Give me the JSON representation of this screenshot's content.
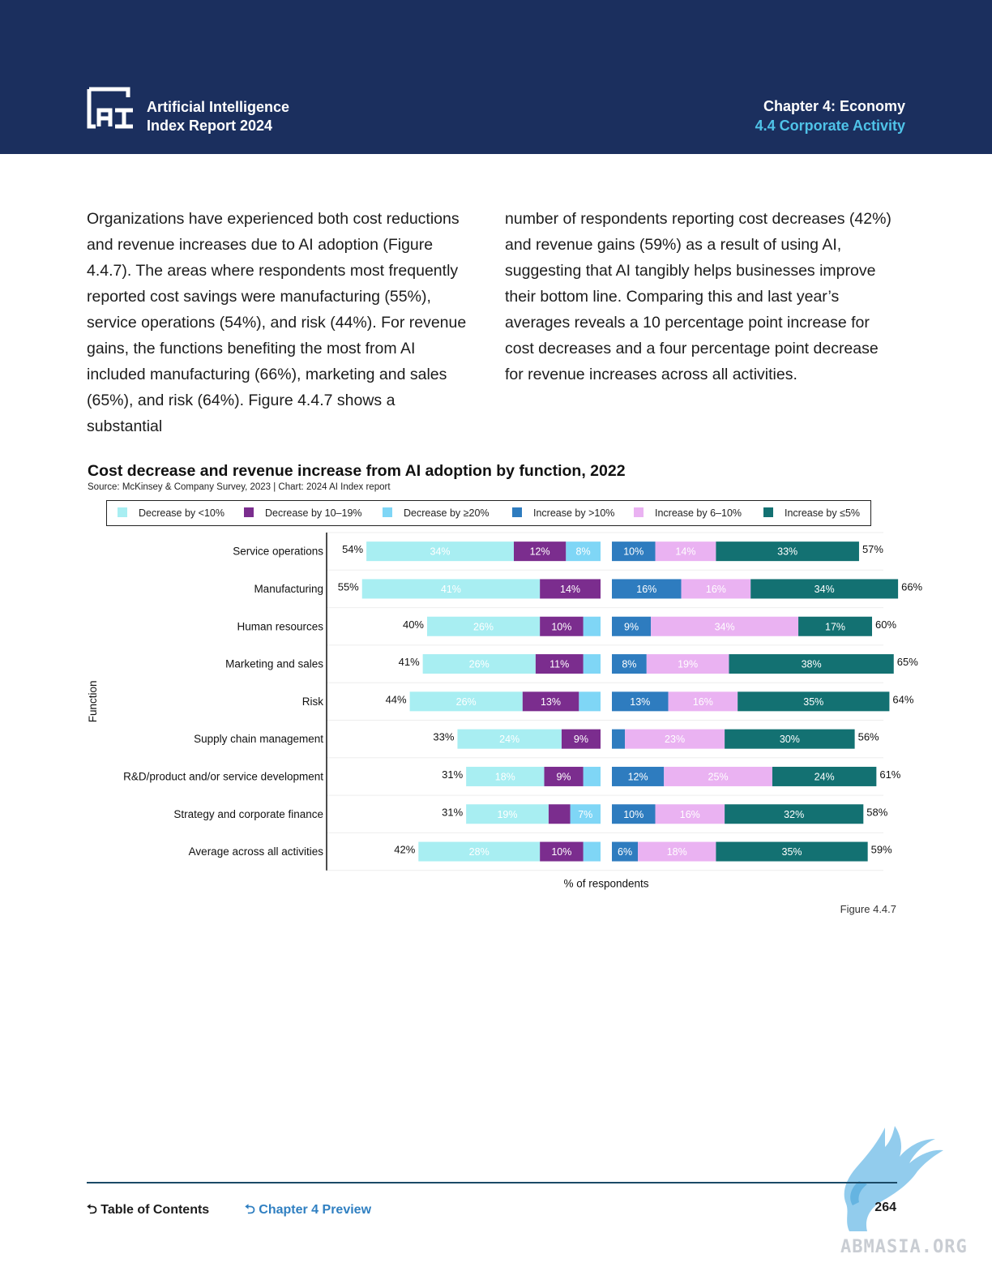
{
  "header": {
    "report_title_line1": "Artificial Intelligence",
    "report_title_line2": "Index Report 2024",
    "chapter": "Chapter 4: Economy",
    "section": "4.4 Corporate Activity"
  },
  "body": {
    "col1": "Organizations have experienced both cost reductions and revenue increases due to AI adoption (Figure 4.4.7). The areas where respondents most frequently reported cost savings were manufacturing (55%), service operations (54%), and risk (44%). For revenue gains, the functions benefiting the most from AI included manufacturing (66%), marketing and sales (65%), and risk (64%). Figure 4.4.7 shows a substantial",
    "col2": "number of respondents reporting cost decreases (42%) and revenue gains (59%) as a result of using AI, suggesting that AI tangibly helps businesses improve their bottom line. Comparing this and last year’s averages reveals a 10 percentage point increase for cost decreases and a four percentage point decrease for revenue increases across all activities."
  },
  "chart": {
    "title": "Cost decrease and revenue increase from AI adoption by function, 2022",
    "source": "Source: McKinsey & Company Survey, 2023 | Chart: 2024 AI Index report",
    "figure_label": "Figure 4.4.7"
  },
  "chart_data": {
    "type": "bar",
    "orientation": "horizontal-diverging",
    "title": "Cost decrease and revenue increase from AI adoption by function, 2022",
    "xlabel": "% of respondents",
    "ylabel": "Function",
    "categories": [
      "Service operations",
      "Manufacturing",
      "Human resources",
      "Marketing and sales",
      "Risk",
      "Supply chain management",
      "R&D/product and/or service development",
      "Strategy and corporate finance",
      "Average across all activities"
    ],
    "cost_series": [
      {
        "name": "Decrease by <10%",
        "color": "#a8eef2",
        "values": [
          34,
          41,
          26,
          26,
          26,
          24,
          18,
          19,
          28
        ],
        "labels": [
          "34%",
          "41%",
          "26%",
          "26%",
          "26%",
          "24%",
          "18%",
          "19%",
          "28%"
        ]
      },
      {
        "name": "Decrease by 10–19%",
        "color": "#7b2d8e",
        "values": [
          12,
          14,
          10,
          11,
          13,
          9,
          9,
          5,
          10
        ],
        "labels": [
          "12%",
          "14%",
          "10%",
          "11%",
          "13%",
          "9%",
          "9%",
          "",
          "10%"
        ]
      },
      {
        "name": "Decrease by ≥20%",
        "color": "#7fd6f6",
        "values": [
          8,
          0,
          4,
          4,
          5,
          0,
          4,
          7,
          4
        ],
        "labels": [
          "8%",
          "",
          "",
          "",
          "",
          "",
          "",
          "7%",
          ""
        ]
      }
    ],
    "revenue_series": [
      {
        "name": "Increase by >10%",
        "color": "#2e7cbf",
        "values": [
          10,
          16,
          9,
          8,
          13,
          3,
          12,
          10,
          6
        ],
        "labels": [
          "10%",
          "16%",
          "9%",
          "8%",
          "13%",
          "",
          "12%",
          "10%",
          "6%"
        ]
      },
      {
        "name": "Increase by 6–10%",
        "color": "#eab2f2",
        "values": [
          14,
          16,
          34,
          19,
          16,
          23,
          25,
          16,
          18
        ],
        "labels": [
          "14%",
          "16%",
          "34%",
          "19%",
          "16%",
          "23%",
          "25%",
          "16%",
          "18%"
        ]
      },
      {
        "name": "Increase by ≤5%",
        "color": "#137172",
        "values": [
          33,
          34,
          17,
          38,
          35,
          30,
          24,
          32,
          35
        ],
        "labels": [
          "33%",
          "34%",
          "17%",
          "38%",
          "35%",
          "30%",
          "24%",
          "32%",
          "35%"
        ]
      }
    ],
    "cost_totals": [
      "54%",
      "55%",
      "40%",
      "41%",
      "44%",
      "33%",
      "31%",
      "31%",
      "42%"
    ],
    "revenue_totals": [
      "57%",
      "66%",
      "60%",
      "65%",
      "64%",
      "56%",
      "61%",
      "58%",
      "59%"
    ],
    "legend": [
      "Decrease by <10%",
      "Decrease by 10–19%",
      "Decrease by ≥20%",
      "Increase by >10%",
      "Increase by 6–10%",
      "Increase by ≤5%"
    ]
  },
  "footer": {
    "toc": "Table of Contents",
    "preview": "Chapter 4 Preview",
    "page": "264"
  },
  "watermark": {
    "text": "ABMASIA.ORG"
  },
  "colors": {
    "header_bg": "#1b2f5e",
    "accent": "#4fc3e8",
    "link": "#2f7fc1"
  }
}
